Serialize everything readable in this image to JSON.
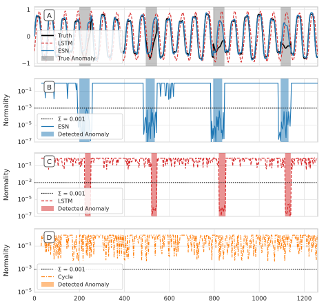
{
  "chart_data": [
    {
      "type": "line",
      "panel_label": "A",
      "xlim": [
        0,
        1260
      ],
      "ylim": [
        -1.1,
        1.1
      ],
      "yticks": [
        -1,
        0,
        1
      ],
      "grid": true,
      "legend_placement": "bottom-left",
      "anomaly_intervals": [
        [
          200,
          250
        ],
        [
          495,
          545
        ],
        [
          795,
          845
        ],
        [
          1095,
          1140
        ]
      ],
      "series": [
        {
          "name": "Truth",
          "color": "#000000",
          "style": "solid"
        },
        {
          "name": "LSTM",
          "color": "#d62728",
          "style": "dashed"
        },
        {
          "name": "ESN",
          "color": "#1f77b4",
          "style": "solid"
        }
      ],
      "shade_labels": [
        "True Anomaly"
      ],
      "shade_color": "#7f7f7f"
    },
    {
      "type": "line",
      "panel_label": "B",
      "ylabel": "Normality",
      "log_y": true,
      "ylim_exp": [
        -7,
        0.5
      ],
      "yticks": [
        "10^-1",
        "10^-3",
        "10^-5",
        "10^-7"
      ],
      "threshold": 0.001,
      "legend_placement": "bottom-left",
      "series": [
        {
          "name": "ESN",
          "color": "#1f77b4",
          "style": "solid"
        }
      ],
      "threshold_label": "Σ = 0.001",
      "shade_labels": [
        "Detected Anomaly"
      ],
      "shade_color": "#1f77b4",
      "detected_intervals": [
        [
          200,
          245
        ],
        [
          495,
          535
        ],
        [
          795,
          835
        ],
        [
          1095,
          1130
        ]
      ]
    },
    {
      "type": "line",
      "panel_label": "C",
      "ylabel": "Normality",
      "log_y": true,
      "ylim_exp": [
        -7,
        0.5
      ],
      "yticks": [
        "10^-1",
        "10^-3",
        "10^-5",
        "10^-7"
      ],
      "threshold": 0.001,
      "legend_placement": "bottom-left",
      "series": [
        {
          "name": "LSTM",
          "color": "#d62728",
          "style": "dashed"
        }
      ],
      "threshold_label": "Σ = 0.001",
      "shade_labels": [
        "Detected Anomaly"
      ],
      "shade_color": "#d62728",
      "detected_intervals": [
        [
          225,
          250
        ],
        [
          520,
          545
        ],
        [
          820,
          850
        ],
        [
          1115,
          1140
        ]
      ]
    },
    {
      "type": "line",
      "panel_label": "D",
      "ylabel": "Normality",
      "log_y": true,
      "ylim_exp": [
        -5,
        0.5
      ],
      "yticks": [
        "10^-1",
        "10^-3",
        "10^-5"
      ],
      "threshold": 0.001,
      "legend_placement": "bottom-left",
      "series": [
        {
          "name": "Cycle",
          "color": "#ff7f0e",
          "style": "dashdot"
        }
      ],
      "threshold_label": "Σ = 0.001",
      "shade_labels": [
        "Detected Anomaly"
      ],
      "shade_color": "#ff7f0e",
      "detected_intervals": []
    }
  ],
  "shared_x": {
    "xlim": [
      0,
      1260
    ],
    "ticks": [
      0,
      200,
      400,
      600,
      800,
      1000,
      1200
    ]
  }
}
